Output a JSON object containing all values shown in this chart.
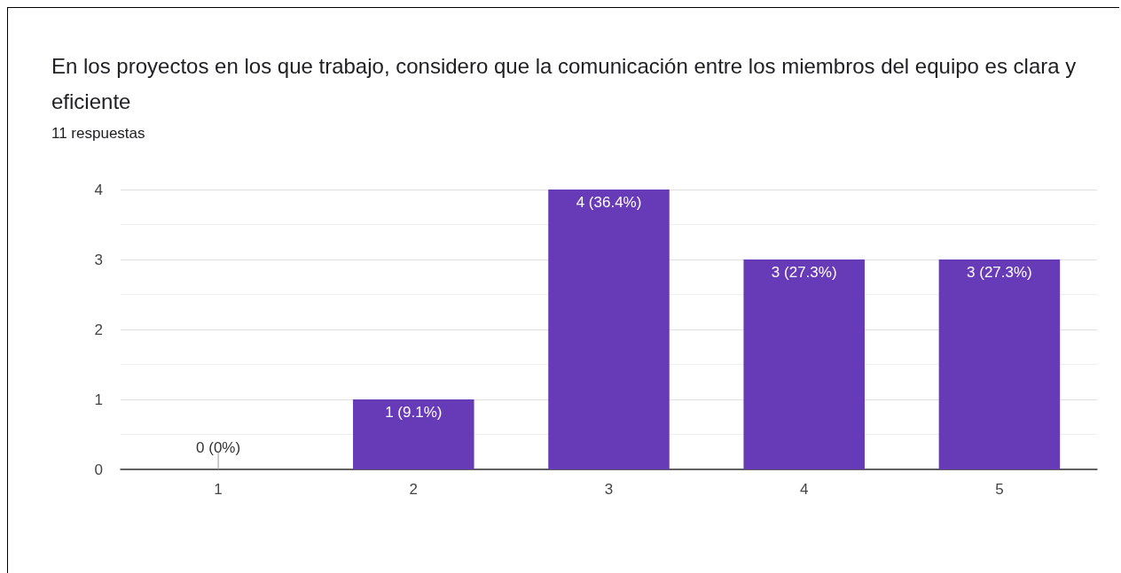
{
  "chart_data": {
    "type": "bar",
    "title": "En los proyectos en los que trabajo, considero que la comunicación entre los miembros del equipo es clara y eficiente",
    "subtitle": "11 respuestas",
    "categories": [
      "1",
      "2",
      "3",
      "4",
      "5"
    ],
    "values": [
      0,
      1,
      4,
      3,
      3
    ],
    "value_labels": [
      "0 (0%)",
      "1 (9.1%)",
      "4 (36.4%)",
      "3 (27.3%)",
      "3 (27.3%)"
    ],
    "color": "#673ab7",
    "ylim": [
      0,
      4
    ],
    "yticks": [
      0,
      1,
      2,
      3,
      4
    ],
    "grid": "y"
  }
}
